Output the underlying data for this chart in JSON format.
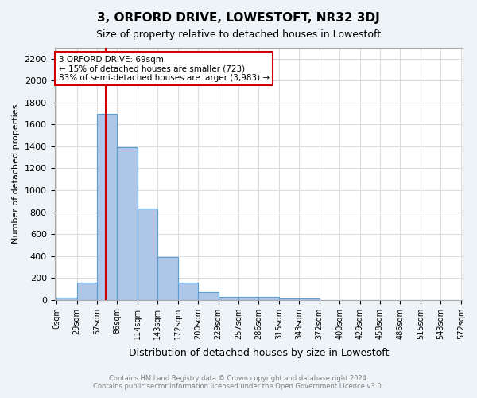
{
  "title": "3, ORFORD DRIVE, LOWESTOFT, NR32 3DJ",
  "subtitle": "Size of property relative to detached houses in Lowestoft",
  "xlabel": "Distribution of detached houses by size in Lowestoft",
  "ylabel": "Number of detached properties",
  "footer_line1": "Contains HM Land Registry data © Crown copyright and database right 2024.",
  "footer_line2": "Contains public sector information licensed under the Open Government Licence v3.0.",
  "bin_labels": [
    "0sqm",
    "29sqm",
    "57sqm",
    "86sqm",
    "114sqm",
    "143sqm",
    "172sqm",
    "200sqm",
    "229sqm",
    "257sqm",
    "286sqm",
    "315sqm",
    "343sqm",
    "372sqm",
    "400sqm",
    "429sqm",
    "458sqm",
    "486sqm",
    "515sqm",
    "543sqm",
    "572sqm"
  ],
  "bar_values": [
    20,
    155,
    1700,
    1390,
    830,
    390,
    160,
    70,
    30,
    30,
    30,
    15,
    10,
    0,
    0,
    0,
    0,
    0,
    0,
    0
  ],
  "bar_color": "#aec6e8",
  "bar_edge_color": "#5a9fd4",
  "annotation_text": "3 ORFORD DRIVE: 69sqm\n← 15% of detached houses are smaller (723)\n83% of semi-detached houses are larger (3,983) →",
  "annotation_box_color": "#ffffff",
  "annotation_edge_color": "#cc0000",
  "property_line_x": 69,
  "property_line_color": "#cc0000",
  "bin_width": 28.5,
  "ylim": [
    0,
    2300
  ],
  "yticks": [
    0,
    200,
    400,
    600,
    800,
    1000,
    1200,
    1400,
    1600,
    1800,
    2000,
    2200
  ],
  "grid_color": "#dddddd",
  "background_color": "#eef3f8",
  "plot_bg_color": "#ffffff"
}
